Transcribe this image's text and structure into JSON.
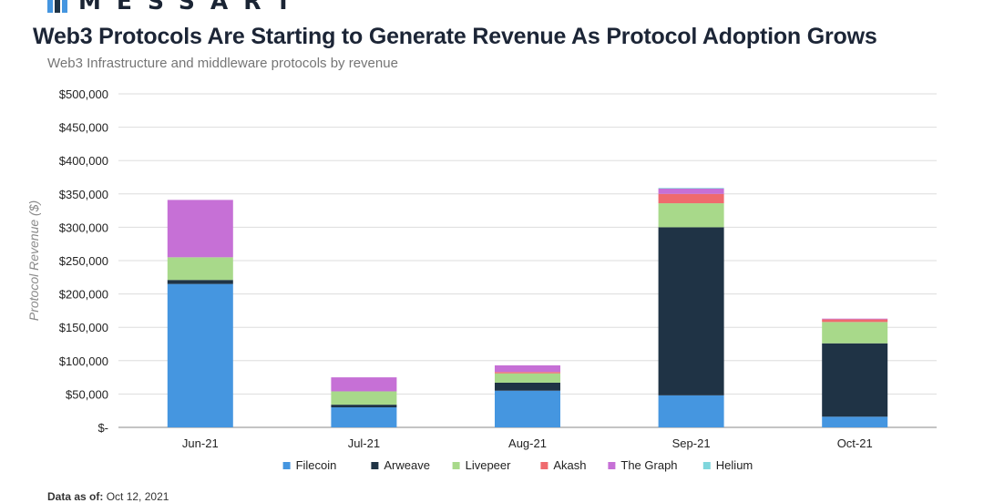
{
  "header": {
    "brand": "MESSART",
    "title": "Web3 Protocols Are Starting to Generate Revenue As Protocol Adoption Grows",
    "subtitle": "Web3 Infrastructure and middleware protocols by revenue"
  },
  "footer": {
    "label": "Data as of:",
    "value": "Oct 12, 2021"
  },
  "colors": {
    "filecoin": "#4596e0",
    "arweave": "#1f3345",
    "livepeer": "#a8d98a",
    "akash": "#ef6a6e",
    "the_graph": "#c670d6",
    "helium": "#7fd6dc",
    "grid": "#dddddd",
    "axis": "#888888"
  },
  "chart_data": {
    "type": "bar",
    "stacked": true,
    "categories": [
      "Jun-21",
      "Jul-21",
      "Aug-21",
      "Sep-21",
      "Oct-21"
    ],
    "series": [
      {
        "name": "Filecoin",
        "values": [
          215000,
          30000,
          55000,
          48000,
          16000
        ]
      },
      {
        "name": "Arweave",
        "values": [
          6000,
          4000,
          12000,
          252000,
          110000
        ]
      },
      {
        "name": "Livepeer",
        "values": [
          34000,
          20000,
          14000,
          36000,
          32000
        ]
      },
      {
        "name": "Akash",
        "values": [
          0,
          0,
          2000,
          14000,
          4000
        ]
      },
      {
        "name": "The Graph",
        "values": [
          86000,
          21000,
          10000,
          8000,
          1000
        ]
      },
      {
        "name": "Helium",
        "values": [
          0,
          0,
          0,
          1000,
          0
        ]
      }
    ],
    "ylabel": "Protocol Revenue ($)",
    "xlabel": "",
    "ylim": [
      0,
      500000
    ],
    "yticks": [
      0,
      50000,
      100000,
      150000,
      200000,
      250000,
      300000,
      350000,
      400000,
      450000,
      500000
    ],
    "ytick_labels": [
      "$-",
      "$50,000",
      "$100,000",
      "$150,000",
      "$200,000",
      "$250,000",
      "$300,000",
      "$350,000",
      "$400,000",
      "$450,000",
      "$500,000"
    ],
    "grid": true,
    "legend_position": "bottom"
  }
}
